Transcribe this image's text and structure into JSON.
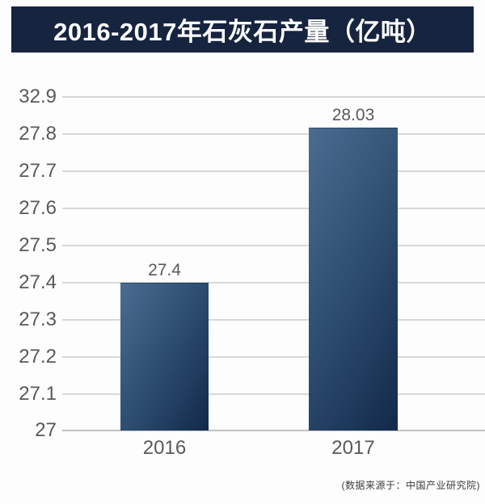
{
  "title": "2016-2017年石灰石产量（亿吨）",
  "source_note": "(数据来源于：中国产业研究院)",
  "chart_data": {
    "type": "bar",
    "title": "2016-2017年石灰石产量（亿吨）",
    "categories": [
      "2016",
      "2017"
    ],
    "values": [
      27.4,
      28.03
    ],
    "data_labels": [
      "27.4",
      "28.03"
    ],
    "xlabel": "",
    "ylabel": "",
    "y_ticks": [
      "32.9",
      "27.8",
      "27.7",
      "27.6",
      "27.5",
      "27.4",
      "27.3",
      "27.2",
      "27.1",
      "27"
    ],
    "ylim": [
      27,
      32.9
    ],
    "grid": true,
    "legend": false,
    "unit": "亿吨"
  },
  "colors": {
    "banner_bg": "#16243f",
    "banner_text": "#ffffff",
    "gridline": "#d8d8d8",
    "baseline": "#c0c0c0",
    "axis_text": "#595959",
    "data_label_text": "#595959",
    "source_text": "#3c3c3c",
    "background": "#fdfdfd",
    "bar_gradient_start": "#4b6c90",
    "bar_gradient_mid": "#2d4d70",
    "bar_gradient_end": "#12294a"
  }
}
